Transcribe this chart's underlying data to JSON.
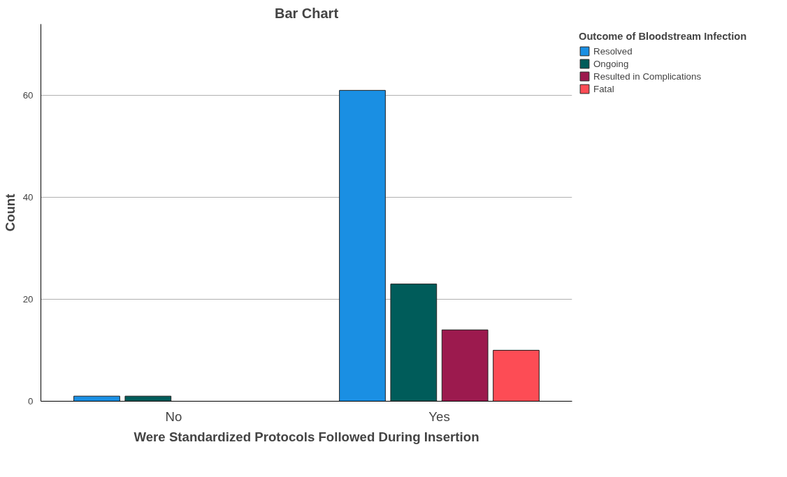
{
  "chart_data": {
    "type": "bar",
    "title": "Bar Chart",
    "xlabel": "Were Standardized Protocols Followed During Insertion",
    "ylabel": "Count",
    "legend_title": "Outcome of Bloodstream Infection",
    "categories": [
      "No",
      "Yes"
    ],
    "series": [
      {
        "name": "Resolved",
        "color": "#1a8fe3",
        "values": [
          1,
          61
        ]
      },
      {
        "name": "Ongoing",
        "color": "#005c5a",
        "values": [
          1,
          23
        ]
      },
      {
        "name": "Resulted in Complications",
        "color": "#9c1a4e",
        "values": [
          null,
          14
        ]
      },
      {
        "name": "Fatal",
        "color": "#fd4c55",
        "values": [
          null,
          10
        ]
      }
    ],
    "ylim": [
      0,
      74
    ],
    "yticks": [
      0,
      20,
      40,
      60
    ],
    "grid": "y",
    "legend": "right"
  }
}
